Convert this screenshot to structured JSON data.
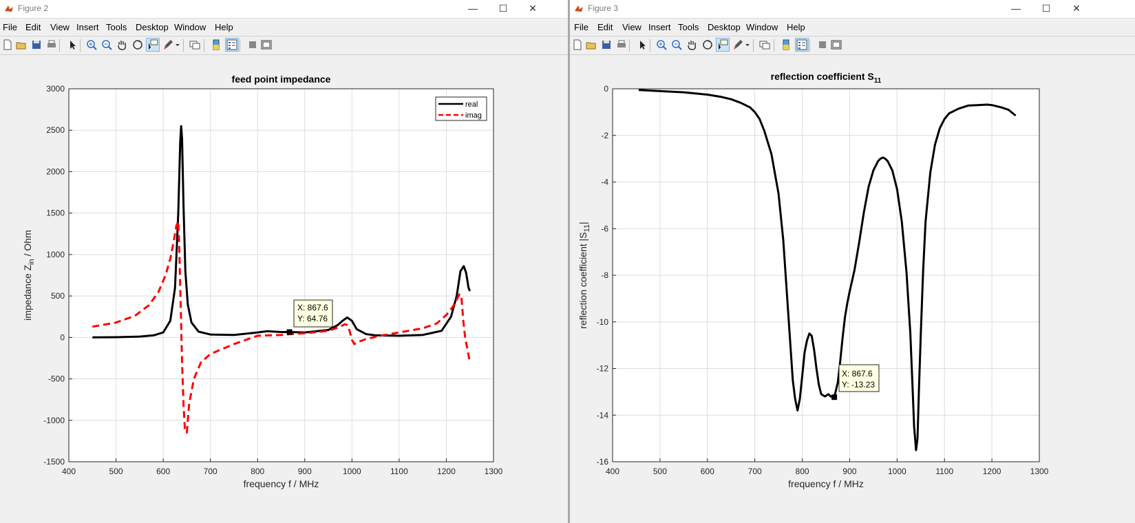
{
  "colors": {
    "real": "#000000",
    "imag": "#ff0000",
    "datatip_bg": "#ffffe1"
  },
  "menu_items": [
    "File",
    "Edit",
    "View",
    "Insert",
    "Tools",
    "Desktop",
    "Window",
    "Help"
  ],
  "toolbar_icons": [
    "new-figure-icon",
    "open-file-icon",
    "save-icon",
    "print-icon",
    "pointer-icon",
    "zoom-in-icon",
    "zoom-out-icon",
    "pan-icon",
    "rotate-3d-icon",
    "data-cursor-icon",
    "brush-icon",
    "brush-dropdown-icon",
    "link-plot-icon",
    "insert-colorbar-icon",
    "insert-legend-icon",
    "hide-plot-tools-icon",
    "show-plot-tools-icon"
  ],
  "windows": [
    {
      "title": "Figure 2",
      "chart_data": {
        "type": "line",
        "title": "feed point impedance",
        "xlabel": "frequency f / MHz",
        "ylabel": "impedance Z",
        "ylabel_sub": "in",
        "ylabel_suffix": " / Ohm",
        "xlim": [
          400,
          1300
        ],
        "ylim": [
          -1500,
          3000
        ],
        "xticks": [
          400,
          500,
          600,
          700,
          800,
          900,
          1000,
          1100,
          1200,
          1300
        ],
        "yticks": [
          -1500,
          -1000,
          -500,
          0,
          500,
          1000,
          1500,
          2000,
          2500,
          3000
        ],
        "grid": true,
        "legend_position": "top-right",
        "series": [
          {
            "name": "real",
            "style": "solid",
            "x": [
              450,
              500,
              550,
              580,
              600,
              615,
              625,
              632,
              636,
              638,
              640,
              643,
              647,
              652,
              660,
              675,
              700,
              750,
              800,
              820,
              850,
              870,
              900,
              950,
              970,
              980,
              990,
              1000,
              1010,
              1030,
              1050,
              1100,
              1150,
              1190,
              1210,
              1222,
              1230,
              1237,
              1242,
              1247,
              1250
            ],
            "y": [
              0,
              3,
              10,
              25,
              60,
              200,
              600,
              1500,
              2350,
              2550,
              2400,
              1600,
              800,
              400,
              180,
              70,
              35,
              30,
              60,
              75,
              65,
              64.76,
              60,
              90,
              150,
              200,
              240,
              200,
              100,
              40,
              25,
              20,
              30,
              80,
              250,
              500,
              800,
              860,
              780,
              600,
              560
            ]
          },
          {
            "name": "imag",
            "style": "dashed",
            "x": [
              450,
              500,
              540,
              570,
              590,
              605,
              615,
              622,
              628,
              632,
              634,
              637,
              640,
              643,
              646,
              650,
              655,
              665,
              680,
              700,
              750,
              800,
              850,
              870,
              900,
              950,
              975,
              985,
              990,
              995,
              1000,
              1005,
              1010,
              1030,
              1060,
              1100,
              1150,
              1180,
              1200,
              1215,
              1228,
              1232,
              1236,
              1240,
              1245,
              1250
            ],
            "y": [
              130,
              180,
              260,
              390,
              550,
              750,
              950,
              1150,
              1350,
              1400,
              1100,
              400,
              -300,
              -800,
              -1100,
              -1150,
              -800,
              -500,
              -300,
              -200,
              -80,
              20,
              30,
              40,
              50,
              80,
              130,
              160,
              150,
              80,
              -30,
              -80,
              -60,
              -20,
              20,
              60,
              110,
              170,
              270,
              380,
              520,
              490,
              200,
              -10,
              -150,
              -300
            ]
          }
        ],
        "datatip": {
          "x": 867.6,
          "y": 64.76,
          "x_label": "X: 867.6",
          "y_label": "Y: 64.76",
          "series": "real"
        }
      }
    },
    {
      "title": "Figure 3",
      "chart_data": {
        "type": "line",
        "title": "reflection coefficient S",
        "title_sub": "11",
        "xlabel": "frequency f / MHz",
        "ylabel": "reflection coefficient |S",
        "ylabel_sub": "11",
        "ylabel_suffix": "|",
        "xlim": [
          400,
          1300
        ],
        "ylim": [
          -16,
          0
        ],
        "xticks": [
          400,
          500,
          600,
          700,
          800,
          900,
          1000,
          1100,
          1200,
          1300
        ],
        "yticks": [
          -16,
          -14,
          -12,
          -10,
          -8,
          -6,
          -4,
          -2,
          0
        ],
        "grid": true,
        "series": [
          {
            "name": "",
            "style": "solid",
            "x": [
              455,
              500,
              550,
              600,
              630,
              650,
              670,
              690,
              700,
              710,
              720,
              735,
              750,
              760,
              770,
              780,
              785,
              790,
              795,
              800,
              805,
              810,
              815,
              820,
              825,
              830,
              835,
              840,
              848,
              855,
              860,
              867.6,
              875,
              880,
              885,
              890,
              895,
              900,
              910,
              920,
              930,
              940,
              950,
              960,
              965,
              970,
              975,
              980,
              990,
              1000,
              1010,
              1020,
              1028,
              1033,
              1036,
              1040,
              1043,
              1046,
              1050,
              1055,
              1060,
              1070,
              1080,
              1090,
              1100,
              1110,
              1130,
              1150,
              1170,
              1190,
              1200,
              1220,
              1235,
              1250
            ],
            "y": [
              -0.05,
              -0.1,
              -0.15,
              -0.25,
              -0.35,
              -0.45,
              -0.6,
              -0.8,
              -1.0,
              -1.3,
              -1.8,
              -2.8,
              -4.5,
              -6.5,
              -9.5,
              -12.5,
              -13.3,
              -13.8,
              -13.3,
              -12.3,
              -11.3,
              -10.8,
              -10.5,
              -10.6,
              -11.2,
              -12,
              -12.7,
              -13.1,
              -13.2,
              -13.1,
              -13.2,
              -13.23,
              -12.6,
              -11.7,
              -10.7,
              -9.8,
              -9.2,
              -8.7,
              -7.8,
              -6.6,
              -5.3,
              -4.2,
              -3.5,
              -3.1,
              -3.0,
              -2.95,
              -3.0,
              -3.1,
              -3.5,
              -4.3,
              -5.7,
              -7.9,
              -10.5,
              -13,
              -14.5,
              -15.5,
              -15.0,
              -13.0,
              -10.5,
              -7.8,
              -5.7,
              -3.6,
              -2.4,
              -1.7,
              -1.3,
              -1.05,
              -0.85,
              -0.72,
              -0.7,
              -0.68,
              -0.7,
              -0.8,
              -0.9,
              -1.15
            ]
          }
        ],
        "datatip": {
          "x": 867.6,
          "y": -13.23,
          "x_label": "X: 867.6",
          "y_label": "Y: -13.23",
          "series": ""
        }
      }
    }
  ]
}
